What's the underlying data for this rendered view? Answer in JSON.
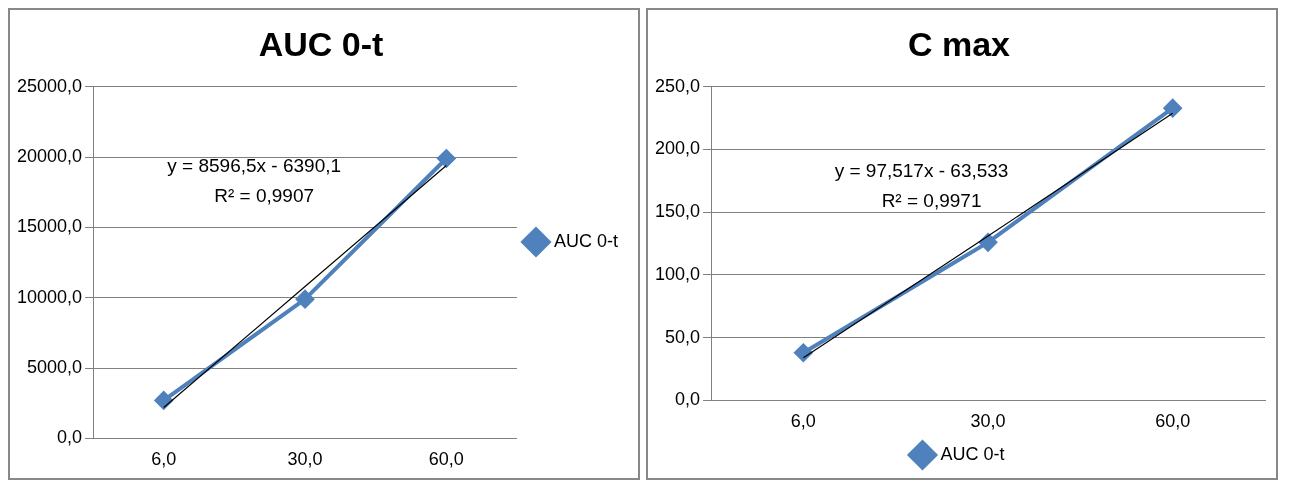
{
  "chart_data": [
    {
      "type": "line",
      "title": "AUC 0-t",
      "categories": [
        "6,0",
        "30,0",
        "60,0"
      ],
      "ylim": [
        0,
        25000
      ],
      "yticks": [
        {
          "value": 0,
          "label": "0,0"
        },
        {
          "value": 5000,
          "label": "5000,0"
        },
        {
          "value": 10000,
          "label": "10000,0"
        },
        {
          "value": 15000,
          "label": "15000,0"
        },
        {
          "value": 20000,
          "label": "20000,0"
        },
        {
          "value": 25000,
          "label": "25000,0"
        }
      ],
      "grid": "y",
      "legend": "right",
      "series": [
        {
          "name": "AUC 0-t",
          "color": "#4f81bd",
          "values": [
            2700,
            9900,
            19900
          ],
          "marker": "diamond"
        },
        {
          "color": "#000000",
          "values": [
            2200,
            10800,
            19400
          ],
          "marker": "none"
        }
      ],
      "annotations": [
        "y = 8596,5x - 6390,1",
        "R² = 0,9907"
      ]
    },
    {
      "type": "line",
      "title": "C max",
      "categories": [
        "6,0",
        "30,0",
        "60,0"
      ],
      "ylim": [
        0,
        250
      ],
      "yticks": [
        {
          "value": 0,
          "label": "0,0"
        },
        {
          "value": 50,
          "label": "50,0"
        },
        {
          "value": 100,
          "label": "100,0"
        },
        {
          "value": 150,
          "label": "150,0"
        },
        {
          "value": 200,
          "label": "200,0"
        },
        {
          "value": 250,
          "label": "250,0"
        }
      ],
      "grid": "y",
      "legend": "bottom",
      "series": [
        {
          "name": "AUC 0-t",
          "color": "#4f81bd",
          "values": [
            38,
            126,
            233
          ],
          "marker": "diamond"
        },
        {
          "color": "#000000",
          "values": [
            34,
            131,
            229
          ],
          "marker": "none"
        }
      ],
      "annotations": [
        "y = 97,517x - 63,533",
        "R² = 0,9971"
      ]
    }
  ]
}
